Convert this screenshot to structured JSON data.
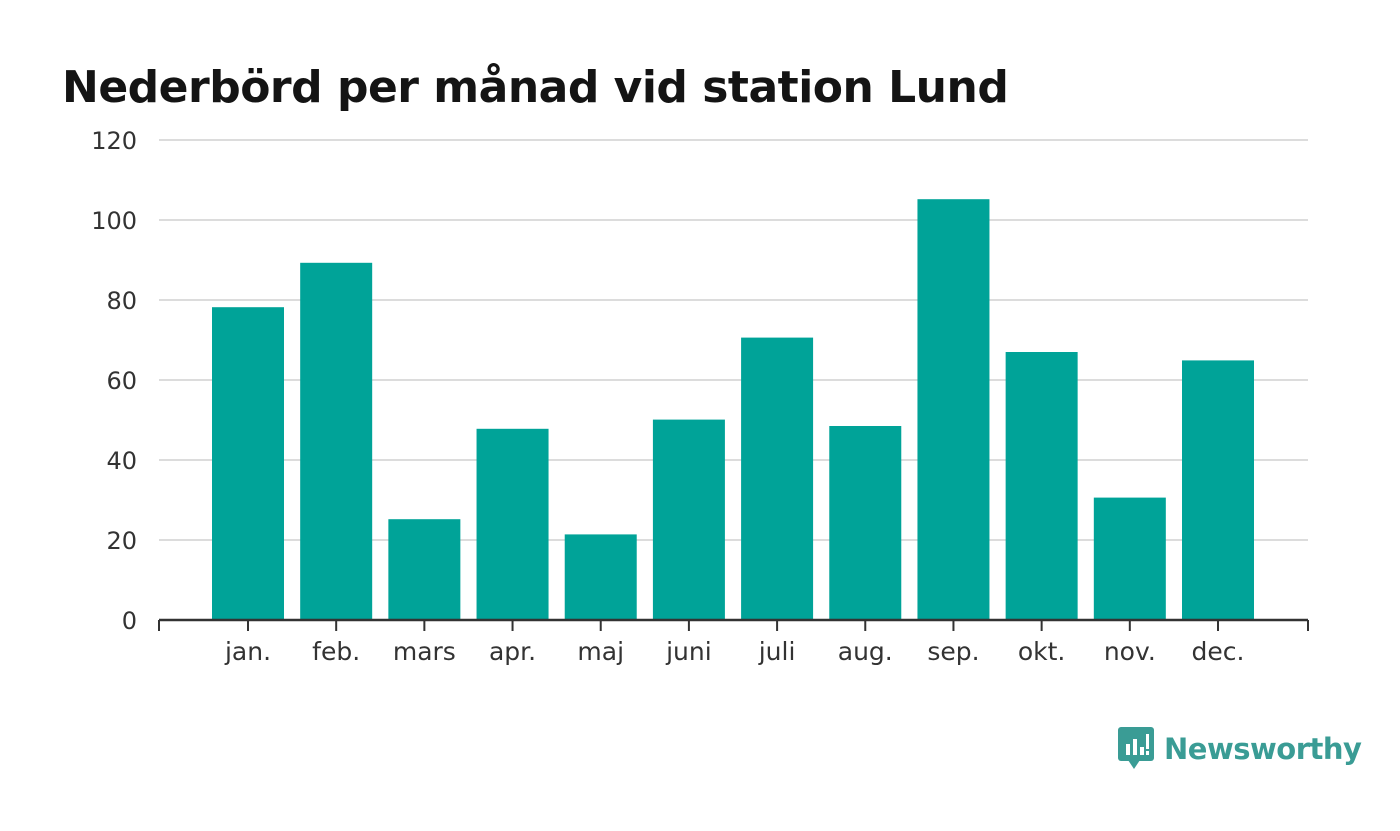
{
  "chart_data": {
    "type": "bar",
    "title": "Nederbörd per månad vid station Lund",
    "categories": [
      "jan.",
      "feb.",
      "mars",
      "apr.",
      "maj",
      "juni",
      "juli",
      "aug.",
      "sep.",
      "okt.",
      "nov.",
      "dec."
    ],
    "values": [
      78.2,
      89.3,
      25.2,
      47.8,
      21.4,
      50.1,
      70.6,
      48.5,
      105.2,
      67.0,
      30.6,
      64.9
    ],
    "xlabel": "",
    "ylabel": "",
    "ylim": [
      0,
      120
    ],
    "yticks": [
      "0",
      "20",
      "40",
      "60",
      "80",
      "100",
      "120"
    ],
    "grid": true,
    "bar_color": "#00a398"
  },
  "branding": {
    "name": "Newsworthy",
    "logo_icon": "newsworthy-logo-icon",
    "color": "#3a9c95"
  }
}
